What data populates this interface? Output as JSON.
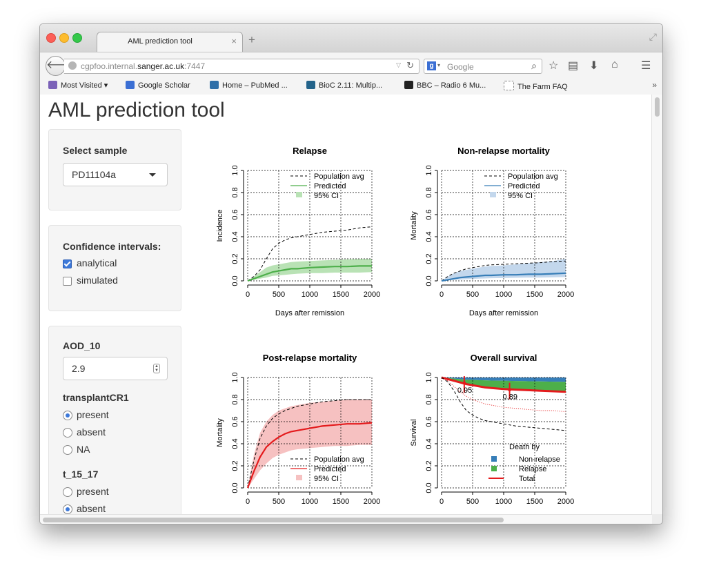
{
  "browser": {
    "tab_title": "AML prediction tool",
    "tab_close": "×",
    "new_tab": "+",
    "url_prefix": "cgpfoo.internal.",
    "url_host": "sanger.ac.uk",
    "url_suffix": ":7447",
    "search_placeholder": "Google",
    "search_engine_letter": "g",
    "icons": [
      "back-arrow-icon",
      "reload-icon",
      "star-icon",
      "reading-list-icon",
      "download-icon",
      "home-icon",
      "menu-icon",
      "search-icon",
      "resize-icon"
    ],
    "bookmarks": [
      {
        "label": "Most Visited ▾",
        "color": "#7b62b8"
      },
      {
        "label": "Google Scholar",
        "color": "#3b6fd4"
      },
      {
        "label": "Home – PubMed ...",
        "color": "#2f6fa8"
      },
      {
        "label": "BioC 2.11: Multip...",
        "color": "#23638a"
      },
      {
        "label": "BBC – Radio 6 Mu...",
        "color": "#222222"
      },
      {
        "label": "The Farm FAQ",
        "color": "#ffffff"
      }
    ],
    "bookmarks_more": "»"
  },
  "page": {
    "title": "AML prediction tool"
  },
  "sidebar": {
    "sample": {
      "label": "Select sample",
      "value": "PD11104a"
    },
    "ci": {
      "label": "Confidence intervals:",
      "options": [
        {
          "label": "analytical",
          "checked": true
        },
        {
          "label": "simulated",
          "checked": false
        }
      ]
    },
    "aod": {
      "label": "AOD_10",
      "value": "2.9"
    },
    "transplant": {
      "label": "transplantCR1",
      "options": [
        {
          "label": "present",
          "checked": true
        },
        {
          "label": "absent",
          "checked": false
        },
        {
          "label": "NA",
          "checked": false
        }
      ]
    },
    "t1517": {
      "label": "t_15_17",
      "options": [
        {
          "label": "present",
          "checked": false
        },
        {
          "label": "absent",
          "checked": true
        }
      ]
    }
  },
  "chart_data": [
    {
      "type": "line",
      "title": "Relapse",
      "xlabel": "Days after remission",
      "ylabel": "Incidence",
      "xlim": [
        0,
        2000
      ],
      "ylim": [
        0,
        1
      ],
      "xticks": [
        0,
        500,
        1000,
        1500,
        2000
      ],
      "yticks": [
        0.0,
        0.2,
        0.4,
        0.6,
        0.8,
        1.0
      ],
      "grid": true,
      "color": "#4daf4a",
      "ci_color": "#b9e2b5",
      "legend": {
        "placement": "top-right",
        "entries": [
          "Population avg",
          "Predicted",
          "95% CI"
        ]
      },
      "series": [
        {
          "name": "Population avg",
          "style": "dashed",
          "x": [
            0,
            100,
            200,
            300,
            400,
            500,
            600,
            700,
            800,
            1000,
            1200,
            1400,
            1600,
            1800,
            2000
          ],
          "y": [
            0,
            0.04,
            0.1,
            0.2,
            0.29,
            0.34,
            0.37,
            0.39,
            0.4,
            0.42,
            0.44,
            0.45,
            0.46,
            0.48,
            0.49
          ]
        },
        {
          "name": "Predicted",
          "style": "solid",
          "x": [
            0,
            100,
            200,
            300,
            400,
            500,
            600,
            700,
            800,
            1000,
            1200,
            1400,
            1600,
            1800,
            2000
          ],
          "y": [
            0,
            0.02,
            0.04,
            0.06,
            0.08,
            0.09,
            0.1,
            0.11,
            0.11,
            0.12,
            0.125,
            0.13,
            0.13,
            0.135,
            0.135
          ]
        },
        {
          "name": "95% CI",
          "style": "band",
          "x": [
            0,
            100,
            200,
            300,
            400,
            500,
            600,
            700,
            800,
            1000,
            1200,
            1400,
            1600,
            1800,
            2000
          ],
          "lower": [
            0,
            0.01,
            0.02,
            0.03,
            0.045,
            0.05,
            0.055,
            0.06,
            0.065,
            0.07,
            0.07,
            0.075,
            0.075,
            0.075,
            0.08
          ],
          "upper": [
            0,
            0.04,
            0.08,
            0.12,
            0.14,
            0.15,
            0.16,
            0.17,
            0.175,
            0.18,
            0.185,
            0.19,
            0.195,
            0.2,
            0.2
          ]
        }
      ]
    },
    {
      "type": "line",
      "title": "Non-relapse mortality",
      "xlabel": "Days after remission",
      "ylabel": "Mortality",
      "xlim": [
        0,
        2000
      ],
      "ylim": [
        0,
        1
      ],
      "xticks": [
        0,
        500,
        1000,
        1500,
        2000
      ],
      "yticks": [
        0.0,
        0.2,
        0.4,
        0.6,
        0.8,
        1.0
      ],
      "grid": true,
      "color": "#377eb8",
      "ci_color": "#c3d7ec",
      "legend": {
        "placement": "top-right",
        "entries": [
          "Population avg",
          "Predicted",
          "95% CI"
        ]
      },
      "series": [
        {
          "name": "Population avg",
          "style": "dashed",
          "x": [
            0,
            100,
            200,
            300,
            400,
            500,
            600,
            700,
            800,
            1000,
            1200,
            1400,
            1600,
            1800,
            2000
          ],
          "y": [
            0,
            0.04,
            0.07,
            0.09,
            0.11,
            0.12,
            0.13,
            0.14,
            0.145,
            0.15,
            0.155,
            0.16,
            0.165,
            0.175,
            0.18
          ]
        },
        {
          "name": "Predicted",
          "style": "solid",
          "x": [
            0,
            100,
            200,
            300,
            400,
            500,
            600,
            700,
            800,
            1000,
            1200,
            1400,
            1600,
            1800,
            2000
          ],
          "y": [
            0,
            0.01,
            0.02,
            0.03,
            0.035,
            0.04,
            0.045,
            0.05,
            0.05,
            0.055,
            0.055,
            0.06,
            0.06,
            0.065,
            0.07
          ]
        },
        {
          "name": "95% CI",
          "style": "band",
          "x": [
            0,
            100,
            200,
            300,
            400,
            500,
            600,
            700,
            800,
            1000,
            1200,
            1400,
            1600,
            1800,
            2000
          ],
          "lower": [
            0,
            0.005,
            0.01,
            0.012,
            0.015,
            0.018,
            0.02,
            0.022,
            0.024,
            0.026,
            0.028,
            0.03,
            0.03,
            0.032,
            0.035
          ],
          "upper": [
            0,
            0.04,
            0.07,
            0.09,
            0.1,
            0.11,
            0.12,
            0.13,
            0.135,
            0.14,
            0.15,
            0.16,
            0.17,
            0.18,
            0.2
          ]
        }
      ]
    },
    {
      "type": "line",
      "title": "Post-relapse mortality",
      "xlabel": "",
      "ylabel": "Mortality",
      "xlim": [
        0,
        2000
      ],
      "ylim": [
        0,
        1
      ],
      "xticks": [
        0,
        500,
        1000,
        1500,
        2000
      ],
      "yticks": [
        0.0,
        0.2,
        0.4,
        0.6,
        0.8,
        1.0
      ],
      "grid": true,
      "color": "#e41a1c",
      "ci_color": "#f6c1c1",
      "legend": {
        "placement": "bottom-right",
        "entries": [
          "Population avg",
          "Predicted",
          "95% CI"
        ]
      },
      "series": [
        {
          "name": "Population avg",
          "style": "dashed",
          "x": [
            0,
            100,
            200,
            300,
            400,
            500,
            600,
            700,
            800,
            1000,
            1200,
            1400,
            1600,
            1800,
            2000
          ],
          "y": [
            0,
            0.25,
            0.45,
            0.56,
            0.63,
            0.67,
            0.7,
            0.72,
            0.74,
            0.76,
            0.78,
            0.79,
            0.8,
            0.8,
            0.8
          ]
        },
        {
          "name": "Predicted",
          "style": "solid",
          "x": [
            0,
            100,
            200,
            300,
            400,
            500,
            600,
            700,
            800,
            1000,
            1200,
            1400,
            1600,
            1800,
            2000
          ],
          "y": [
            0,
            0.15,
            0.28,
            0.37,
            0.42,
            0.46,
            0.49,
            0.51,
            0.52,
            0.54,
            0.56,
            0.57,
            0.58,
            0.58,
            0.59
          ]
        },
        {
          "name": "95% CI",
          "style": "band",
          "x": [
            0,
            100,
            200,
            300,
            400,
            500,
            600,
            700,
            800,
            1000,
            1200,
            1400,
            1600,
            1800,
            2000
          ],
          "lower": [
            0,
            0.08,
            0.16,
            0.22,
            0.27,
            0.3,
            0.32,
            0.34,
            0.35,
            0.36,
            0.37,
            0.38,
            0.38,
            0.39,
            0.39
          ],
          "upper": [
            0,
            0.3,
            0.5,
            0.6,
            0.66,
            0.7,
            0.72,
            0.74,
            0.75,
            0.77,
            0.78,
            0.79,
            0.8,
            0.8,
            0.8
          ]
        }
      ]
    },
    {
      "type": "area",
      "title": "Overall survival",
      "xlabel": "",
      "ylabel": "Survival",
      "xlim": [
        0,
        2000
      ],
      "ylim": [
        0,
        1
      ],
      "xticks": [
        0,
        500,
        1000,
        1500,
        2000
      ],
      "yticks": [
        0.0,
        0.2,
        0.4,
        0.6,
        0.8,
        1.0
      ],
      "grid": true,
      "legend": {
        "placement": "bottom-right",
        "title": "Death by",
        "entries": [
          {
            "name": "Non-relapse",
            "color": "#377eb8"
          },
          {
            "name": "Relapse",
            "color": "#4daf4a"
          },
          {
            "name": "Total",
            "color": "#e41a1c"
          }
        ]
      },
      "annotations": [
        {
          "x": 365,
          "y": 0.95,
          "label": "0.95"
        },
        {
          "x": 1095,
          "y": 0.89,
          "label": "0.89"
        }
      ],
      "x": [
        0,
        100,
        200,
        300,
        400,
        500,
        600,
        700,
        800,
        1000,
        1200,
        1400,
        1600,
        1800,
        2000
      ],
      "series": [
        {
          "name": "Non-relapse",
          "lower": [
            1,
            0.995,
            0.99,
            0.985,
            0.98,
            0.978,
            0.976,
            0.974,
            0.972,
            0.97,
            0.968,
            0.966,
            0.964,
            0.962,
            0.96
          ],
          "upper": [
            1,
            1,
            1,
            1,
            1,
            1,
            1,
            1,
            1,
            1,
            1,
            1,
            1,
            1,
            1
          ]
        },
        {
          "name": "Relapse",
          "lower": [
            1,
            0.985,
            0.97,
            0.955,
            0.94,
            0.93,
            0.92,
            0.91,
            0.905,
            0.895,
            0.89,
            0.885,
            0.88,
            0.875,
            0.87
          ],
          "upper": [
            1,
            0.995,
            0.99,
            0.985,
            0.98,
            0.978,
            0.976,
            0.974,
            0.972,
            0.97,
            0.968,
            0.966,
            0.964,
            0.962,
            0.96
          ]
        },
        {
          "name": "Total",
          "style": "solid",
          "y": [
            1,
            0.985,
            0.97,
            0.955,
            0.94,
            0.93,
            0.92,
            0.91,
            0.905,
            0.895,
            0.89,
            0.885,
            0.88,
            0.875,
            0.87
          ]
        },
        {
          "name": "Total CI",
          "style": "dotted",
          "y": [
            1,
            0.97,
            0.92,
            0.87,
            0.83,
            0.8,
            0.78,
            0.76,
            0.75,
            0.73,
            0.72,
            0.71,
            0.7,
            0.7,
            0.69
          ]
        },
        {
          "name": "Population avg",
          "style": "dashed",
          "y": [
            1,
            0.96,
            0.88,
            0.78,
            0.7,
            0.66,
            0.63,
            0.61,
            0.6,
            0.58,
            0.56,
            0.55,
            0.54,
            0.53,
            0.52
          ]
        }
      ]
    }
  ]
}
